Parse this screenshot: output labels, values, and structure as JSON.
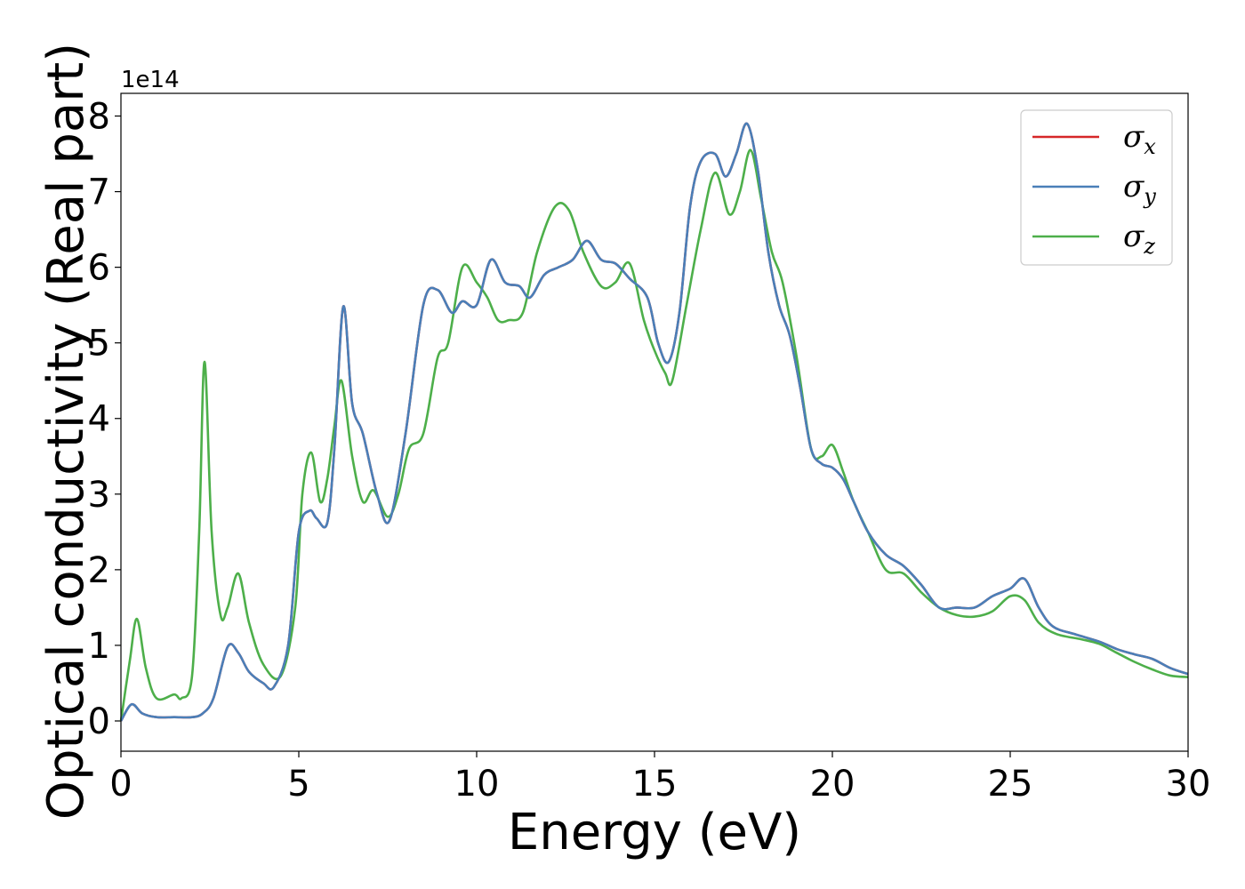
{
  "chart_data": {
    "type": "line",
    "xlabel": "Energy (eV)",
    "ylabel": "Optical conductivity (Real part)",
    "y_offset_label": "1e14",
    "xlim": [
      0,
      30
    ],
    "ylim": [
      -0.4,
      8.3
    ],
    "x_ticks": [
      0,
      5,
      10,
      15,
      20,
      25,
      30
    ],
    "y_ticks": [
      0,
      1,
      2,
      3,
      4,
      5,
      6,
      7,
      8
    ],
    "grid": false,
    "legend_position": "top-right",
    "series": [
      {
        "name": "σx",
        "symbol": "σ",
        "subscript": "x",
        "color": "#d62728",
        "x": [
          0,
          0.3,
          0.6,
          1.0,
          1.5,
          2.0,
          2.3,
          2.6,
          3.0,
          3.3,
          3.6,
          4.0,
          4.3,
          4.7,
          5.0,
          5.3,
          5.5,
          5.8,
          6.0,
          6.25,
          6.5,
          6.8,
          7.2,
          7.55,
          8.0,
          8.5,
          8.9,
          9.3,
          9.6,
          10.0,
          10.4,
          10.8,
          11.2,
          11.5,
          11.9,
          12.3,
          12.7,
          13.1,
          13.5,
          13.9,
          14.3,
          14.8,
          15.1,
          15.4,
          15.7,
          16.0,
          16.3,
          16.7,
          17.0,
          17.3,
          17.6,
          17.9,
          18.2,
          18.5,
          18.8,
          19.1,
          19.4,
          19.7,
          20.0,
          20.3,
          20.6,
          21.0,
          21.5,
          22.0,
          22.5,
          23.0,
          23.5,
          24.0,
          24.5,
          25.0,
          25.4,
          25.8,
          26.2,
          26.8,
          27.5,
          28.0,
          28.5,
          29.0,
          29.5,
          30.0
        ],
        "values": [
          0.0,
          0.22,
          0.1,
          0.05,
          0.05,
          0.05,
          0.1,
          0.3,
          0.98,
          0.9,
          0.65,
          0.5,
          0.45,
          1.0,
          2.5,
          2.78,
          2.68,
          2.62,
          3.6,
          5.48,
          4.2,
          3.8,
          3.0,
          2.65,
          3.8,
          5.5,
          5.7,
          5.4,
          5.55,
          5.5,
          6.1,
          5.8,
          5.75,
          5.6,
          5.9,
          6.0,
          6.1,
          6.35,
          6.1,
          6.05,
          5.85,
          5.6,
          5.0,
          4.75,
          5.4,
          6.8,
          7.4,
          7.5,
          7.2,
          7.5,
          7.9,
          7.3,
          6.2,
          5.5,
          5.1,
          4.4,
          3.6,
          3.4,
          3.35,
          3.2,
          2.9,
          2.5,
          2.2,
          2.05,
          1.8,
          1.5,
          1.5,
          1.5,
          1.65,
          1.75,
          1.88,
          1.5,
          1.25,
          1.15,
          1.05,
          0.95,
          0.88,
          0.82,
          0.7,
          0.62
        ]
      },
      {
        "name": "σy",
        "symbol": "σ",
        "subscript": "y",
        "color": "#4a7fb8",
        "x": [
          0,
          0.3,
          0.6,
          1.0,
          1.5,
          2.0,
          2.3,
          2.6,
          3.0,
          3.3,
          3.6,
          4.0,
          4.3,
          4.7,
          5.0,
          5.3,
          5.5,
          5.8,
          6.0,
          6.25,
          6.5,
          6.8,
          7.2,
          7.55,
          8.0,
          8.5,
          8.9,
          9.3,
          9.6,
          10.0,
          10.4,
          10.8,
          11.2,
          11.5,
          11.9,
          12.3,
          12.7,
          13.1,
          13.5,
          13.9,
          14.3,
          14.8,
          15.1,
          15.4,
          15.7,
          16.0,
          16.3,
          16.7,
          17.0,
          17.3,
          17.6,
          17.9,
          18.2,
          18.5,
          18.8,
          19.1,
          19.4,
          19.7,
          20.0,
          20.3,
          20.6,
          21.0,
          21.5,
          22.0,
          22.5,
          23.0,
          23.5,
          24.0,
          24.5,
          25.0,
          25.4,
          25.8,
          26.2,
          26.8,
          27.5,
          28.0,
          28.5,
          29.0,
          29.5,
          30.0
        ],
        "values": [
          0.0,
          0.22,
          0.1,
          0.05,
          0.05,
          0.05,
          0.1,
          0.3,
          0.98,
          0.9,
          0.65,
          0.5,
          0.45,
          1.0,
          2.5,
          2.78,
          2.68,
          2.62,
          3.6,
          5.48,
          4.2,
          3.8,
          3.0,
          2.65,
          3.8,
          5.5,
          5.7,
          5.4,
          5.55,
          5.5,
          6.1,
          5.8,
          5.75,
          5.6,
          5.9,
          6.0,
          6.1,
          6.35,
          6.1,
          6.05,
          5.85,
          5.6,
          5.0,
          4.75,
          5.4,
          6.8,
          7.4,
          7.5,
          7.2,
          7.5,
          7.9,
          7.3,
          6.2,
          5.5,
          5.1,
          4.4,
          3.6,
          3.4,
          3.35,
          3.2,
          2.9,
          2.5,
          2.2,
          2.05,
          1.8,
          1.5,
          1.5,
          1.5,
          1.65,
          1.75,
          1.88,
          1.5,
          1.25,
          1.15,
          1.05,
          0.95,
          0.88,
          0.82,
          0.7,
          0.62
        ]
      },
      {
        "name": "σz",
        "symbol": "σ",
        "subscript": "z",
        "color": "#4daf4a",
        "x": [
          0,
          0.25,
          0.45,
          0.7,
          1.0,
          1.5,
          1.7,
          2.0,
          2.2,
          2.35,
          2.55,
          2.8,
          3.0,
          3.3,
          3.6,
          4.0,
          4.5,
          4.9,
          5.1,
          5.35,
          5.6,
          5.8,
          6.0,
          6.2,
          6.5,
          6.8,
          7.1,
          7.5,
          7.8,
          8.1,
          8.5,
          8.9,
          9.2,
          9.6,
          10.0,
          10.3,
          10.6,
          10.9,
          11.3,
          11.7,
          12.2,
          12.6,
          13.0,
          13.5,
          13.9,
          14.3,
          14.7,
          15.0,
          15.3,
          15.5,
          15.9,
          16.3,
          16.7,
          17.1,
          17.4,
          17.7,
          18.0,
          18.3,
          18.6,
          19.0,
          19.4,
          19.7,
          20.0,
          20.3,
          20.6,
          21.0,
          21.5,
          22.0,
          22.5,
          23.0,
          23.5,
          24.0,
          24.5,
          25.0,
          25.4,
          25.8,
          26.3,
          27.0,
          27.5,
          28.0,
          28.5,
          29.0,
          29.5,
          30.0
        ],
        "values": [
          0.0,
          0.8,
          1.35,
          0.7,
          0.3,
          0.35,
          0.3,
          0.6,
          2.5,
          4.75,
          2.5,
          1.4,
          1.5,
          1.95,
          1.3,
          0.75,
          0.6,
          1.5,
          3.0,
          3.55,
          2.9,
          3.2,
          3.9,
          4.5,
          3.5,
          2.9,
          3.05,
          2.7,
          3.0,
          3.6,
          3.8,
          4.8,
          5.0,
          6.0,
          5.8,
          5.6,
          5.3,
          5.3,
          5.4,
          6.2,
          6.8,
          6.75,
          6.2,
          5.75,
          5.8,
          6.05,
          5.3,
          4.9,
          4.6,
          4.5,
          5.5,
          6.5,
          7.25,
          6.7,
          7.0,
          7.55,
          6.9,
          6.2,
          5.8,
          4.8,
          3.6,
          3.5,
          3.65,
          3.3,
          2.9,
          2.5,
          2.0,
          1.95,
          1.7,
          1.5,
          1.4,
          1.38,
          1.45,
          1.65,
          1.6,
          1.3,
          1.15,
          1.08,
          1.02,
          0.9,
          0.78,
          0.68,
          0.6,
          0.58
        ]
      }
    ]
  }
}
